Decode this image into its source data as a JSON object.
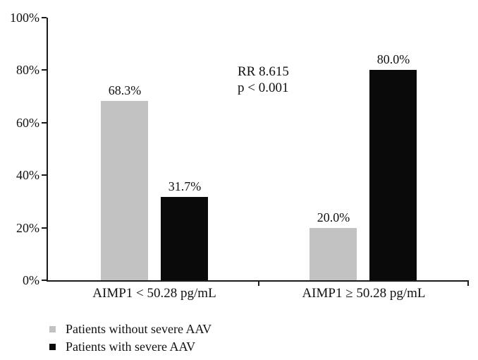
{
  "chart_data": {
    "type": "bar",
    "title": "",
    "xlabel": "",
    "ylabel": "",
    "ylim": [
      0,
      100
    ],
    "grid": false,
    "legend_position": "bottom-left",
    "y_ticks": [
      "0%",
      "20%",
      "40%",
      "60%",
      "80%",
      "100%"
    ],
    "categories": [
      "AIMP1 < 50.28 pg/mL",
      "AIMP1 ≥ 50.28 pg/mL"
    ],
    "series": [
      {
        "name": "Patients without severe AAV",
        "color": "#c2c2c2",
        "values": [
          68.3,
          20.0
        ],
        "value_labels": [
          "68.3%",
          "20.0%"
        ]
      },
      {
        "name": "Patients with severe AAV",
        "color": "#0a0a0a",
        "values": [
          31.7,
          80.0
        ],
        "value_labels": [
          "31.7%",
          "80.0%"
        ]
      }
    ],
    "annotation": {
      "line1": "RR 8.615",
      "line2": "p < 0.001"
    }
  }
}
